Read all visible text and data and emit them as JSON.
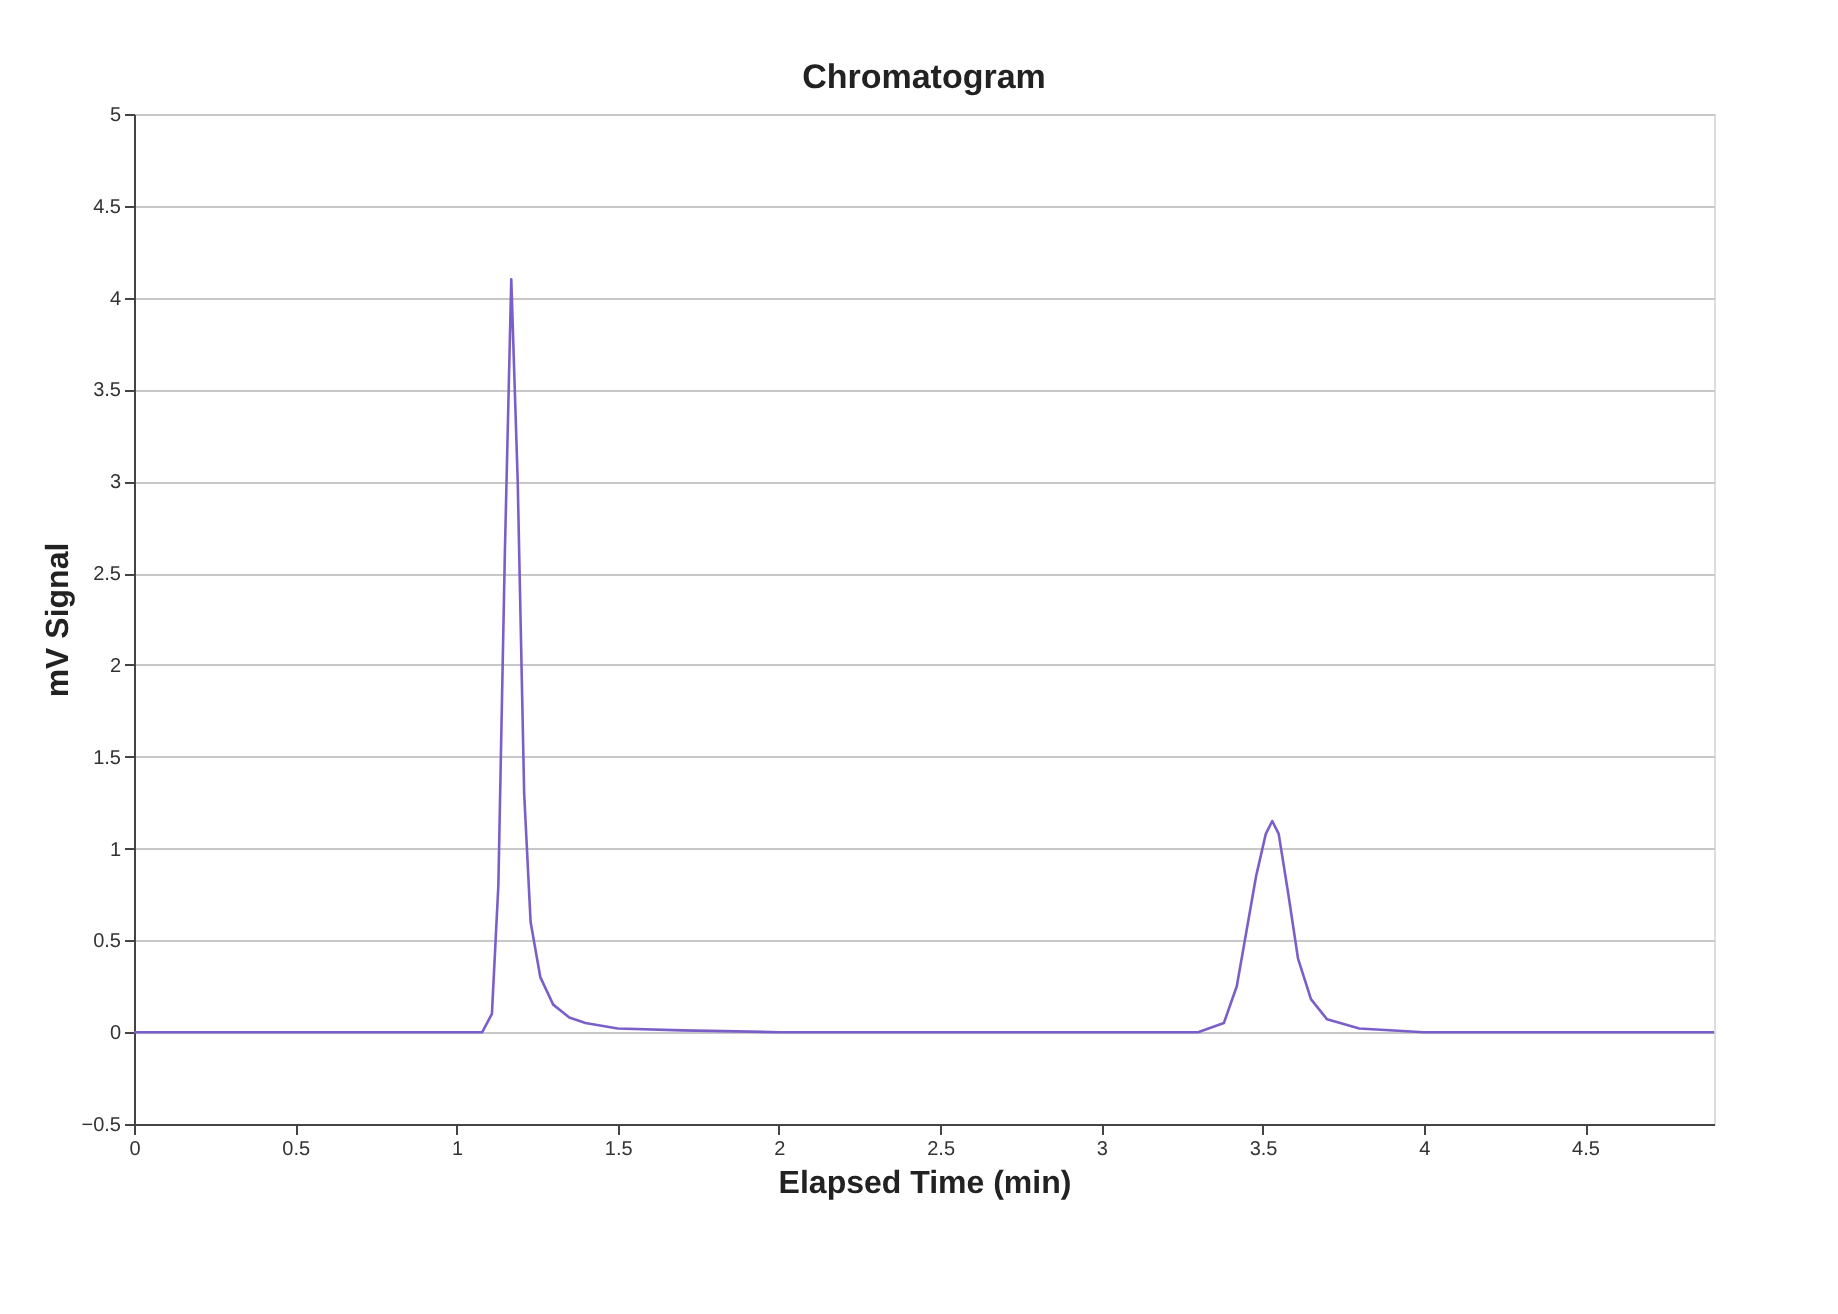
{
  "chart_data": {
    "type": "line",
    "title": "Chromatogram",
    "xlabel": "Elapsed Time (min)",
    "ylabel": "mV Signal",
    "xlim": [
      0,
      4.9
    ],
    "xticks": [
      0,
      0.5,
      1,
      1.5,
      2,
      2.5,
      3,
      3.5,
      4,
      4.5
    ],
    "ylim": [
      -0.5,
      5
    ],
    "yticks": [
      -0.5,
      0,
      0.5,
      1,
      1.5,
      2,
      2.5,
      3,
      3.5,
      4,
      4.5,
      5
    ],
    "grid": "y",
    "marker": "none",
    "line_style": "solid",
    "series": [
      {
        "color": "#7b5fc9",
        "x": [
          0,
          0.5,
          1.0,
          1.08,
          1.11,
          1.13,
          1.15,
          1.17,
          1.19,
          1.21,
          1.23,
          1.26,
          1.3,
          1.35,
          1.4,
          1.5,
          1.7,
          2.0,
          2.5,
          3.0,
          3.3,
          3.38,
          3.42,
          3.45,
          3.48,
          3.51,
          3.53,
          3.55,
          3.58,
          3.61,
          3.65,
          3.7,
          3.8,
          4.0,
          4.5,
          4.9
        ],
        "values": [
          0,
          0,
          0,
          0,
          0.1,
          0.8,
          2.6,
          4.1,
          3.0,
          1.3,
          0.6,
          0.3,
          0.15,
          0.08,
          0.05,
          0.02,
          0.01,
          0,
          0,
          0,
          0,
          0.05,
          0.25,
          0.55,
          0.85,
          1.08,
          1.15,
          1.08,
          0.75,
          0.4,
          0.18,
          0.07,
          0.02,
          0,
          0,
          0
        ]
      }
    ]
  }
}
